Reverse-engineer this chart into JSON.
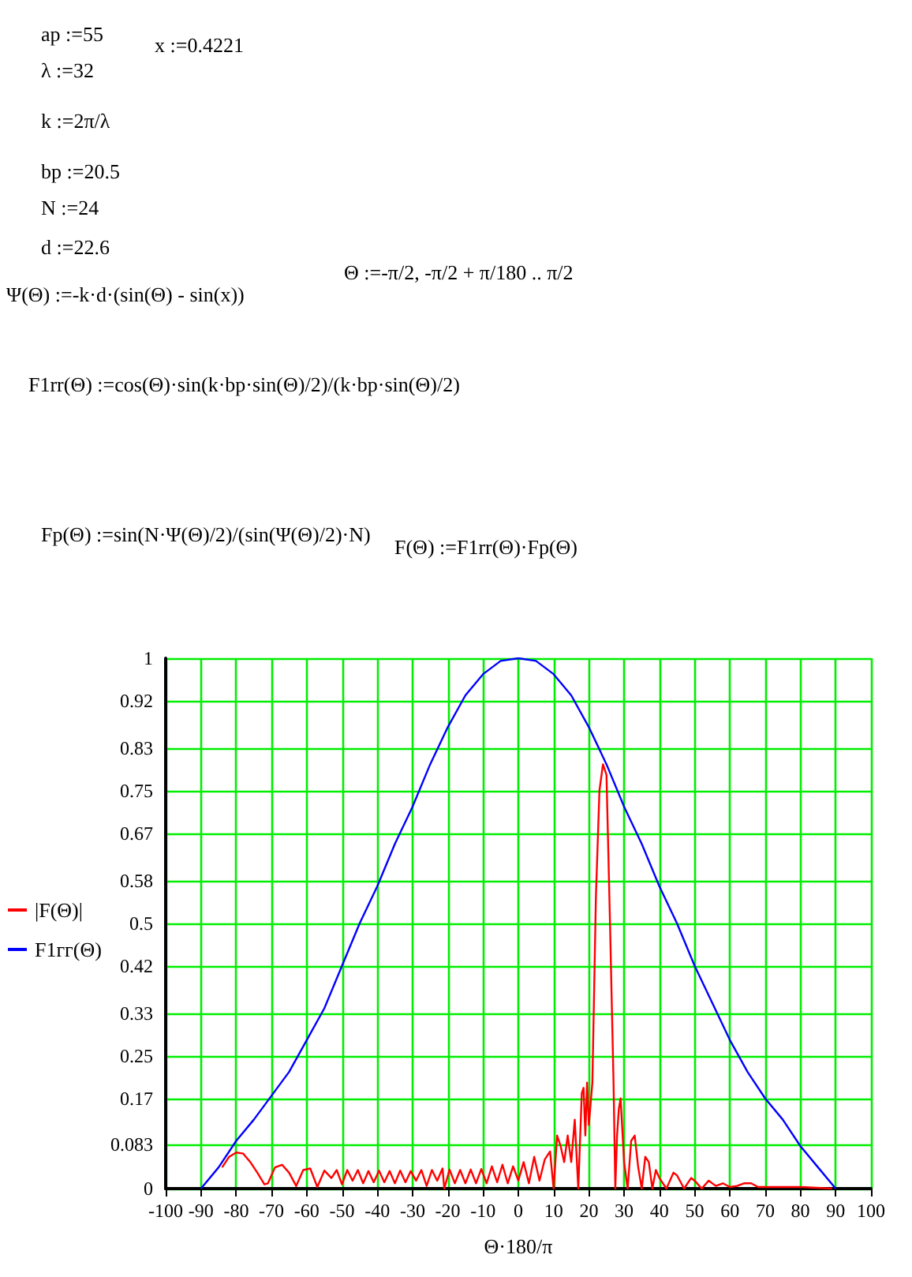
{
  "chart_data": {
    "type": "line",
    "annotations": [
      "ap :=55",
      "x :=0.4221",
      "λ :=32",
      "k :=2π/λ",
      "bp :=20.5",
      "N :=24",
      "d :=22.6",
      "Θ :=-π/2, -π/2 + π/180 .. π/2",
      "Ψ(Θ) :=-k·d·(sin(Θ) - sin(x))",
      "F1rr(Θ) :=cos(Θ)·sin(k·bp·sin(Θ)/2)/(k·bp·sin(Θ)/2)",
      "Fp(Θ) :=sin(N·Ψ(Θ)/2)/(sin(Ψ(Θ)/2)·N)",
      "F(Θ) :=F1rr(Θ)·Fp(Θ)"
    ],
    "xlabel": "Θ·180/π",
    "series": [
      {
        "name": "|F(Θ)|",
        "color": "#ff0000",
        "x": [
          -84,
          -82,
          -80,
          -78,
          -76,
          -74,
          -72,
          -71,
          -69,
          -67,
          -65,
          -63,
          -61,
          -59,
          -57,
          -55,
          -53,
          -51.5,
          -50,
          -48.5,
          -47,
          -45.5,
          -44,
          -42.5,
          -41,
          -39.5,
          -38,
          -36.5,
          -35,
          -33.5,
          -32,
          -30.5,
          -29,
          -27.5,
          -26,
          -24.5,
          -23,
          -21.5,
          -21,
          -19.5,
          -18,
          -16.5,
          -15,
          -13.5,
          -12,
          -10.5,
          -9,
          -7.5,
          -6,
          -4.5,
          -3,
          -1.5,
          0,
          1.5,
          3,
          4.5,
          6,
          7.5,
          9,
          10,
          11,
          12,
          13,
          14,
          15,
          16,
          17,
          18,
          18.5,
          19,
          19.5,
          20,
          21,
          22,
          23,
          24,
          25,
          26,
          27,
          27.5,
          28,
          28.5,
          29,
          30,
          31,
          32,
          33,
          34,
          35,
          36,
          37,
          38,
          39,
          40,
          42,
          44,
          45,
          47,
          49,
          50,
          52,
          54,
          56,
          58,
          60,
          62,
          64,
          66,
          68,
          70,
          80,
          89
        ],
        "values": [
          0.04,
          0.06,
          0.068,
          0.066,
          0.05,
          0.03,
          0.008,
          0.01,
          0.04,
          0.045,
          0.03,
          0.005,
          0.035,
          0.038,
          0.003,
          0.034,
          0.02,
          0.035,
          0.008,
          0.035,
          0.015,
          0.035,
          0.01,
          0.033,
          0.012,
          0.034,
          0.012,
          0.033,
          0.01,
          0.034,
          0.012,
          0.033,
          0.015,
          0.035,
          0.005,
          0.035,
          0.015,
          0.038,
          0,
          0.036,
          0.01,
          0.035,
          0.01,
          0.036,
          0.01,
          0.037,
          0.01,
          0.042,
          0.012,
          0.045,
          0.01,
          0.042,
          0.015,
          0.05,
          0.01,
          0.06,
          0.015,
          0.055,
          0.07,
          0,
          0.1,
          0.08,
          0.05,
          0.1,
          0.05,
          0.13,
          0,
          0.18,
          0.19,
          0.1,
          0.2,
          0.12,
          0.2,
          0.55,
          0.75,
          0.8,
          0.78,
          0.5,
          0.2,
          0,
          0.1,
          0.15,
          0.17,
          0.05,
          0,
          0.09,
          0.1,
          0.04,
          0,
          0.06,
          0.05,
          0,
          0.035,
          0.02,
          0,
          0.03,
          0.025,
          0,
          0.02,
          0.015,
          0,
          0.015,
          0.005,
          0.01,
          0.003,
          0.005,
          0.01,
          0.01,
          0.003,
          0.003,
          0.003,
          0
        ]
      },
      {
        "name": "F1гг(Θ)",
        "color": "#0000ff",
        "x": [
          -90,
          -85,
          -80,
          -75,
          -70,
          -65,
          -60,
          -55,
          -50,
          -45,
          -40,
          -35,
          -30,
          -25,
          -20,
          -15,
          -10,
          -5,
          0,
          5,
          10,
          15,
          20,
          25,
          30,
          35,
          40,
          45,
          50,
          55,
          60,
          65,
          70,
          75,
          80,
          85,
          90
        ],
        "values": [
          0,
          0.04,
          0.09,
          0.13,
          0.175,
          0.22,
          0.28,
          0.34,
          0.42,
          0.5,
          0.57,
          0.65,
          0.72,
          0.8,
          0.87,
          0.93,
          0.97,
          0.995,
          1,
          0.995,
          0.97,
          0.93,
          0.87,
          0.8,
          0.72,
          0.65,
          0.57,
          0.5,
          0.42,
          0.35,
          0.28,
          0.22,
          0.17,
          0.13,
          0.08,
          0.04,
          0
        ]
      }
    ],
    "xlim": [
      -100,
      100
    ],
    "xticks": [
      -100,
      -90,
      -80,
      -70,
      -60,
      -50,
      -40,
      -30,
      -20,
      -10,
      0,
      10,
      20,
      30,
      40,
      50,
      60,
      70,
      80,
      90,
      100
    ],
    "ylim": [
      0,
      1
    ],
    "yticks": [
      0,
      0.083,
      0.17,
      0.25,
      0.33,
      0.42,
      0.5,
      0.58,
      0.67,
      0.75,
      0.83,
      0.92,
      1
    ],
    "grid": true,
    "legend": "left",
    "marker": "none",
    "line_style": "solid"
  }
}
